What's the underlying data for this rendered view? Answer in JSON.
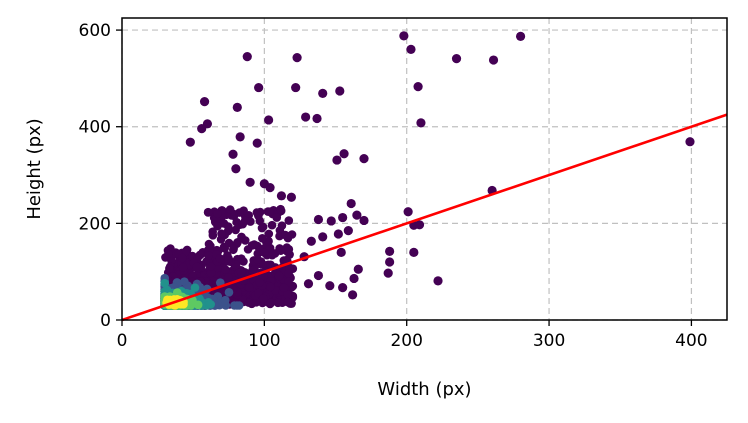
{
  "chart_data": {
    "type": "scatter",
    "title": "",
    "xlabel": "Width (px)",
    "ylabel": "Height (px)",
    "xlim": [
      0,
      425
    ],
    "ylim": [
      0,
      625
    ],
    "xticks": [
      0,
      100,
      200,
      300,
      400
    ],
    "yticks": [
      0,
      200,
      400,
      600
    ],
    "grid": true,
    "colormap": "viridis (point density)",
    "colors": {
      "low_density": "#440154",
      "mid_low": "#3b528b",
      "mid": "#21918c",
      "mid_high": "#5ec962",
      "high_density": "#fde725",
      "fit_line": "#ff0000",
      "grid": "#c0c0c0"
    },
    "fit_line": {
      "x": [
        0,
        425
      ],
      "y": [
        0,
        425
      ]
    },
    "dense_core": {
      "center": [
        37,
        37
      ],
      "x_range": [
        30,
        110
      ],
      "y_range": [
        30,
        120
      ]
    },
    "outliers": [
      [
        198,
        588
      ],
      [
        203,
        560
      ],
      [
        208,
        483
      ],
      [
        210,
        408
      ],
      [
        235,
        541
      ],
      [
        261,
        538
      ],
      [
        280,
        587
      ],
      [
        399,
        369
      ],
      [
        260,
        268
      ],
      [
        222,
        81
      ],
      [
        201,
        224
      ],
      [
        205,
        196
      ],
      [
        209,
        197
      ],
      [
        188,
        142
      ],
      [
        188,
        120
      ],
      [
        187,
        97
      ],
      [
        205,
        140
      ],
      [
        88,
        545
      ],
      [
        123,
        543
      ],
      [
        96,
        481
      ],
      [
        122,
        481
      ],
      [
        141,
        469
      ],
      [
        153,
        474
      ],
      [
        103,
        414
      ],
      [
        129,
        420
      ],
      [
        137,
        417
      ],
      [
        58,
        452
      ],
      [
        60,
        406
      ],
      [
        56,
        396
      ],
      [
        81,
        440
      ],
      [
        48,
        368
      ],
      [
        78,
        343
      ],
      [
        95,
        366
      ],
      [
        83,
        379
      ],
      [
        151,
        331
      ],
      [
        156,
        344
      ],
      [
        170,
        334
      ],
      [
        100,
        282
      ],
      [
        104,
        274
      ],
      [
        80,
        313
      ],
      [
        90,
        285
      ],
      [
        112,
        257
      ],
      [
        119,
        254
      ],
      [
        138,
        208
      ],
      [
        147,
        205
      ],
      [
        155,
        212
      ],
      [
        161,
        241
      ],
      [
        165,
        217
      ],
      [
        170,
        206
      ],
      [
        152,
        178
      ],
      [
        159,
        185
      ],
      [
        154,
        140
      ],
      [
        141,
        172
      ],
      [
        133,
        163
      ],
      [
        128,
        131
      ],
      [
        166,
        105
      ],
      [
        163,
        86
      ],
      [
        155,
        67
      ],
      [
        162,
        52
      ],
      [
        138,
        92
      ],
      [
        131,
        75
      ],
      [
        146,
        71
      ]
    ]
  }
}
